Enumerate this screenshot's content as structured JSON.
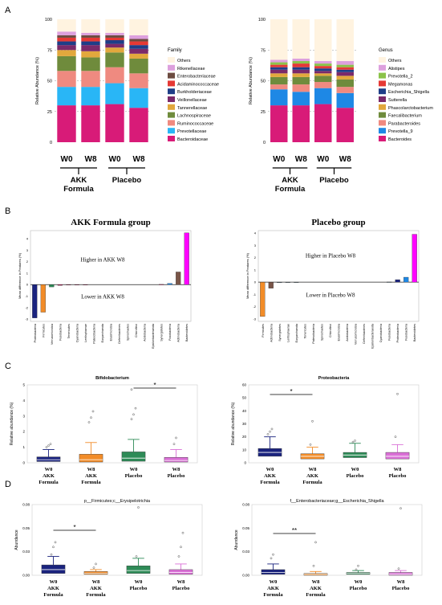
{
  "panel_labels": [
    "A",
    "B",
    "C",
    "D"
  ],
  "colors": {
    "family": [
      "#D81B78",
      "#29B6F6",
      "#EF8A80",
      "#6F8B3C",
      "#E2A83D",
      "#7B2A6A",
      "#1F3E88",
      "#E53935",
      "#6D4C41",
      "#DDA0DD",
      "#FFF3E0"
    ],
    "genus": [
      "#D81B78",
      "#1E88E5",
      "#EF8A80",
      "#6F8B3C",
      "#E2A83D",
      "#7B2A6A",
      "#1F3E88",
      "#E53935",
      "#8BC34A",
      "#DDA0DD",
      "#FFF3E0"
    ],
    "box_groups": [
      "#1A237E",
      "#F28C28",
      "#2E8B57",
      "#DA70D6"
    ],
    "diff_bars": [
      "#1A237E",
      "#F28C28",
      "#2E8B57",
      "#C2185B",
      "#795548",
      "#1E88E5",
      "#FF00FF",
      "#6D4C41",
      "#607D8B"
    ]
  },
  "chart_data": [
    {
      "id": "A-family",
      "type": "bar",
      "stacked": true,
      "ylabel": "Relative Abundance (%)",
      "ylim": [
        0,
        100
      ],
      "yticks": [
        0,
        25,
        50,
        75,
        100
      ],
      "categories": [
        "W0",
        "W8",
        "W0",
        "W8"
      ],
      "group_labels": [
        [
          "AKK",
          "Formula"
        ],
        [
          "Placebo"
        ]
      ],
      "legend_title": "Family",
      "legend_position": "right",
      "series": [
        {
          "name": "Bacteroidaceae",
          "values": [
            30,
            30,
            31,
            28
          ]
        },
        {
          "name": "Prevotellaceae",
          "values": [
            15,
            15,
            17,
            16
          ]
        },
        {
          "name": "Ruminococcaceae",
          "values": [
            13,
            13,
            13,
            12
          ]
        },
        {
          "name": "Lachnospiraceae",
          "values": [
            12,
            11,
            12,
            12
          ]
        },
        {
          "name": "Tannerellaceae",
          "values": [
            5,
            5,
            4,
            4
          ]
        },
        {
          "name": "Veillonellaceae",
          "values": [
            4,
            5,
            3,
            4
          ]
        },
        {
          "name": "Burkholderiaceae",
          "values": [
            3,
            3,
            3,
            3
          ]
        },
        {
          "name": "Acidaminococcaceae",
          "values": [
            3,
            3,
            2,
            3
          ]
        },
        {
          "name": "Enterobacteriaceae",
          "values": [
            2,
            2,
            2,
            2
          ]
        },
        {
          "name": "Rikenellaceae",
          "values": [
            3,
            2,
            2,
            3
          ]
        },
        {
          "name": "Others",
          "values": [
            10,
            11,
            11,
            13
          ]
        }
      ]
    },
    {
      "id": "A-genus",
      "type": "bar",
      "stacked": true,
      "ylabel": "Relative Abundance (%)",
      "ylim": [
        0,
        100
      ],
      "yticks": [
        0,
        25,
        50,
        75,
        100
      ],
      "categories": [
        "W0",
        "W8",
        "W0",
        "W8"
      ],
      "group_labels": [
        [
          "AKK",
          "Formula"
        ],
        [
          "Placebo"
        ]
      ],
      "legend_title": "Genus",
      "legend_position": "right",
      "series": [
        {
          "name": "Bacteroides",
          "values": [
            30,
            30,
            31,
            28
          ]
        },
        {
          "name": "Prevotella_9",
          "values": [
            13,
            11,
            13,
            12
          ]
        },
        {
          "name": "Parabacteroides",
          "values": [
            4,
            6,
            5,
            5
          ]
        },
        {
          "name": "Faecalibacterium",
          "values": [
            6,
            6,
            5,
            6
          ]
        },
        {
          "name": "Phascolarctobacterium",
          "values": [
            3,
            3,
            2,
            3
          ]
        },
        {
          "name": "Sutterella",
          "values": [
            3,
            3,
            2,
            3
          ]
        },
        {
          "name": "Escherichia_Shigella",
          "values": [
            2,
            2,
            2,
            2
          ]
        },
        {
          "name": "Megamonas",
          "values": [
            2,
            3,
            2,
            2
          ]
        },
        {
          "name": "Prevotella_2",
          "values": [
            2,
            2,
            2,
            2
          ]
        },
        {
          "name": "Alistipes",
          "values": [
            2,
            2,
            2,
            3
          ]
        },
        {
          "name": "Others",
          "values": [
            33,
            32,
            34,
            34
          ]
        }
      ]
    },
    {
      "id": "B-akk",
      "type": "bar",
      "title": "AKK Formula group",
      "ylabel": "Mean difference in Features (%)",
      "ylim": [
        -3.2,
        4.7
      ],
      "annotation_top": "Higher in AKK W8",
      "annotation_bottom": "Lower in AKK W8",
      "categories": [
        "Proteobacteria",
        "Firmicutes",
        "Verrucomicrobia",
        "Fusobacteria",
        "Tenericutes",
        "Cyanobacteria",
        "Lentisphaerae",
        "Patescibacteria",
        "Euryarchaeota",
        "Elusimicrobia",
        "Deferribacteres",
        "Spirochaetes",
        "Chloroflexi",
        "Acidobacteria",
        "Epsilonbacteraeota",
        "Synergistetes",
        "Fusobacteria",
        "Actinobacteria",
        "Bacteroidetes"
      ],
      "values": [
        -2.9,
        -2.4,
        -0.2,
        -0.07,
        -0.03,
        -0.02,
        -0.01,
        0,
        0,
        0,
        0,
        0,
        0,
        0,
        0,
        0.02,
        0.1,
        1.1,
        4.5
      ]
    },
    {
      "id": "B-placebo",
      "type": "bar",
      "title": "Placebo group",
      "ylabel": "Mean difference in Features (%)",
      "ylim": [
        -3.2,
        4.2
      ],
      "annotation_top": "Higher in Placebo W8",
      "annotation_bottom": "Lower in Placebo W8",
      "categories": [
        "Firmicutes",
        "Actinobacteria",
        "Synergistetes",
        "Lentisphaerae",
        "Euryarchaeota",
        "Tenericutes",
        "Patescibacteria",
        "Spirochaetes",
        "Chloroflexi",
        "Elusimicrobia",
        "Acidobacteria",
        "Verrucomicrobia",
        "Deferribacteres",
        "Epsilonbacteraeota",
        "Cyanobacteria",
        "Fusobacteria",
        "Proteobacteria",
        "Fusobacteria",
        "Bacteroidetes"
      ],
      "values": [
        -2.8,
        -0.5,
        -0.05,
        -0.02,
        -0.01,
        0,
        0,
        0,
        0,
        0,
        0,
        0,
        0,
        0,
        0,
        0.01,
        0.2,
        0.4,
        3.9
      ]
    },
    {
      "id": "C-bifido",
      "type": "box",
      "title": "Bifidobacterium",
      "ylabel": "Relative abundance (%)",
      "ylim": [
        0,
        5
      ],
      "yticks": [
        0,
        1,
        2,
        3,
        4,
        5
      ],
      "categories": [
        [
          "W0",
          "AKK",
          "Formula"
        ],
        [
          "W8",
          "AKK",
          "Formula"
        ],
        [
          "W0",
          "Placebo"
        ],
        [
          "W8",
          "Placebo"
        ]
      ],
      "significance": [
        {
          "from": 2,
          "to": 3,
          "label": "*"
        }
      ],
      "boxes": [
        {
          "q1": 0.08,
          "median": 0.2,
          "q3": 0.38,
          "mean": 0.3,
          "sd_upper": 0.85,
          "outliers": [
            1.0,
            1.1,
            1.2
          ]
        },
        {
          "q1": 0.05,
          "median": 0.2,
          "q3": 0.55,
          "mean": 0.45,
          "sd_upper": 1.3,
          "outliers": [
            2.6,
            2.9,
            3.3
          ]
        },
        {
          "q1": 0.1,
          "median": 0.3,
          "q3": 0.7,
          "mean": 0.6,
          "sd_upper": 1.5,
          "outliers": [
            2.8,
            3.1,
            3.5,
            4.7
          ]
        },
        {
          "q1": 0.05,
          "median": 0.15,
          "q3": 0.35,
          "mean": 0.3,
          "sd_upper": 0.85,
          "outliers": [
            1.2,
            1.6
          ]
        }
      ]
    },
    {
      "id": "C-proteo",
      "type": "box",
      "title": "Proteobacteria",
      "ylabel": "Relative abundance (%)",
      "ylim": [
        0,
        60
      ],
      "yticks": [
        0,
        10,
        20,
        30,
        40,
        50,
        60
      ],
      "categories": [
        [
          "W0",
          "AKK",
          "Formula"
        ],
        [
          "W8",
          "AKK",
          "Formula"
        ],
        [
          "W0",
          "Placebo"
        ],
        [
          "W8",
          "Placebo"
        ]
      ],
      "significance": [
        {
          "from": 0,
          "to": 1,
          "label": "*"
        }
      ],
      "boxes": [
        {
          "q1": 5,
          "median": 8,
          "q3": 11,
          "mean": 9,
          "sd_upper": 20,
          "outliers": [
            22,
            24,
            26
          ]
        },
        {
          "q1": 3,
          "median": 5,
          "q3": 7,
          "mean": 6,
          "sd_upper": 12,
          "outliers": [
            14,
            32
          ]
        },
        {
          "q1": 4,
          "median": 6,
          "q3": 8,
          "mean": 7,
          "sd_upper": 15,
          "outliers": [
            16,
            17
          ]
        },
        {
          "q1": 3,
          "median": 5,
          "q3": 8,
          "mean": 7,
          "sd_upper": 14,
          "outliers": [
            20,
            53
          ]
        }
      ]
    },
    {
      "id": "D-erysip",
      "type": "box",
      "title": "p__Firmicutes;c__Erysipelotrichia",
      "ylabel": "Abundance",
      "ylim": [
        0,
        0.075
      ],
      "yticks": [
        0.0,
        0.025,
        0.05,
        0.075
      ],
      "ytick_labels": [
        "0.00",
        "0.03",
        "0.05",
        "0.08"
      ],
      "categories": [
        [
          "W0",
          "AKK",
          "Formula"
        ],
        [
          "W8",
          "AKK",
          "Formula"
        ],
        [
          "W0",
          "Placebo"
        ],
        [
          "W8",
          "Placebo"
        ]
      ],
      "significance": [
        {
          "from": 0,
          "to": 1,
          "label": "*"
        }
      ],
      "boxes": [
        {
          "q1": 0.002,
          "median": 0.006,
          "q3": 0.011,
          "mean": 0.008,
          "sd_upper": 0.02,
          "outliers": [
            0.022,
            0.03,
            0.035
          ]
        },
        {
          "q1": 0.001,
          "median": 0.002,
          "q3": 0.004,
          "mean": 0.003,
          "sd_upper": 0.006,
          "outliers": [
            0.008,
            0.012
          ]
        },
        {
          "q1": 0.002,
          "median": 0.005,
          "q3": 0.01,
          "mean": 0.007,
          "sd_upper": 0.018,
          "outliers": [
            0.02,
            0.072
          ]
        },
        {
          "q1": 0.001,
          "median": 0.003,
          "q3": 0.006,
          "mean": 0.005,
          "sd_upper": 0.012,
          "outliers": [
            0.02,
            0.03,
            0.045
          ]
        }
      ]
    },
    {
      "id": "D-escherichia",
      "type": "box",
      "title": "f__Enterobacteriaceae;g__Escherichia_Shigella",
      "ylabel": "Abundance",
      "ylim": [
        0,
        0.075
      ],
      "yticks": [
        0.0,
        0.025,
        0.05,
        0.075
      ],
      "ytick_labels": [
        "0.00",
        "0.03",
        "0.05",
        "0.08"
      ],
      "categories": [
        [
          "W0",
          "AKK",
          "Formula"
        ],
        [
          "W8",
          "AKK",
          "Formula"
        ],
        [
          "W0",
          "Placebo"
        ],
        [
          "W8",
          "Placebo"
        ]
      ],
      "significance": [
        {
          "from": 0,
          "to": 1,
          "label": "**"
        }
      ],
      "boxes": [
        {
          "q1": 0.001,
          "median": 0.003,
          "q3": 0.006,
          "mean": 0.005,
          "sd_upper": 0.012,
          "outliers": [
            0.018,
            0.022
          ]
        },
        {
          "q1": 0.0,
          "median": 0.001,
          "q3": 0.002,
          "mean": 0.002,
          "sd_upper": 0.004,
          "outliers": [
            0.01,
            0.035
          ]
        },
        {
          "q1": 0.001,
          "median": 0.002,
          "q3": 0.003,
          "mean": 0.002,
          "sd_upper": 0.005,
          "outliers": [
            0.006,
            0.01
          ]
        },
        {
          "q1": 0.0,
          "median": 0.001,
          "q3": 0.003,
          "mean": 0.002,
          "sd_upper": 0.005,
          "outliers": [
            0.007,
            0.071
          ]
        }
      ]
    }
  ]
}
